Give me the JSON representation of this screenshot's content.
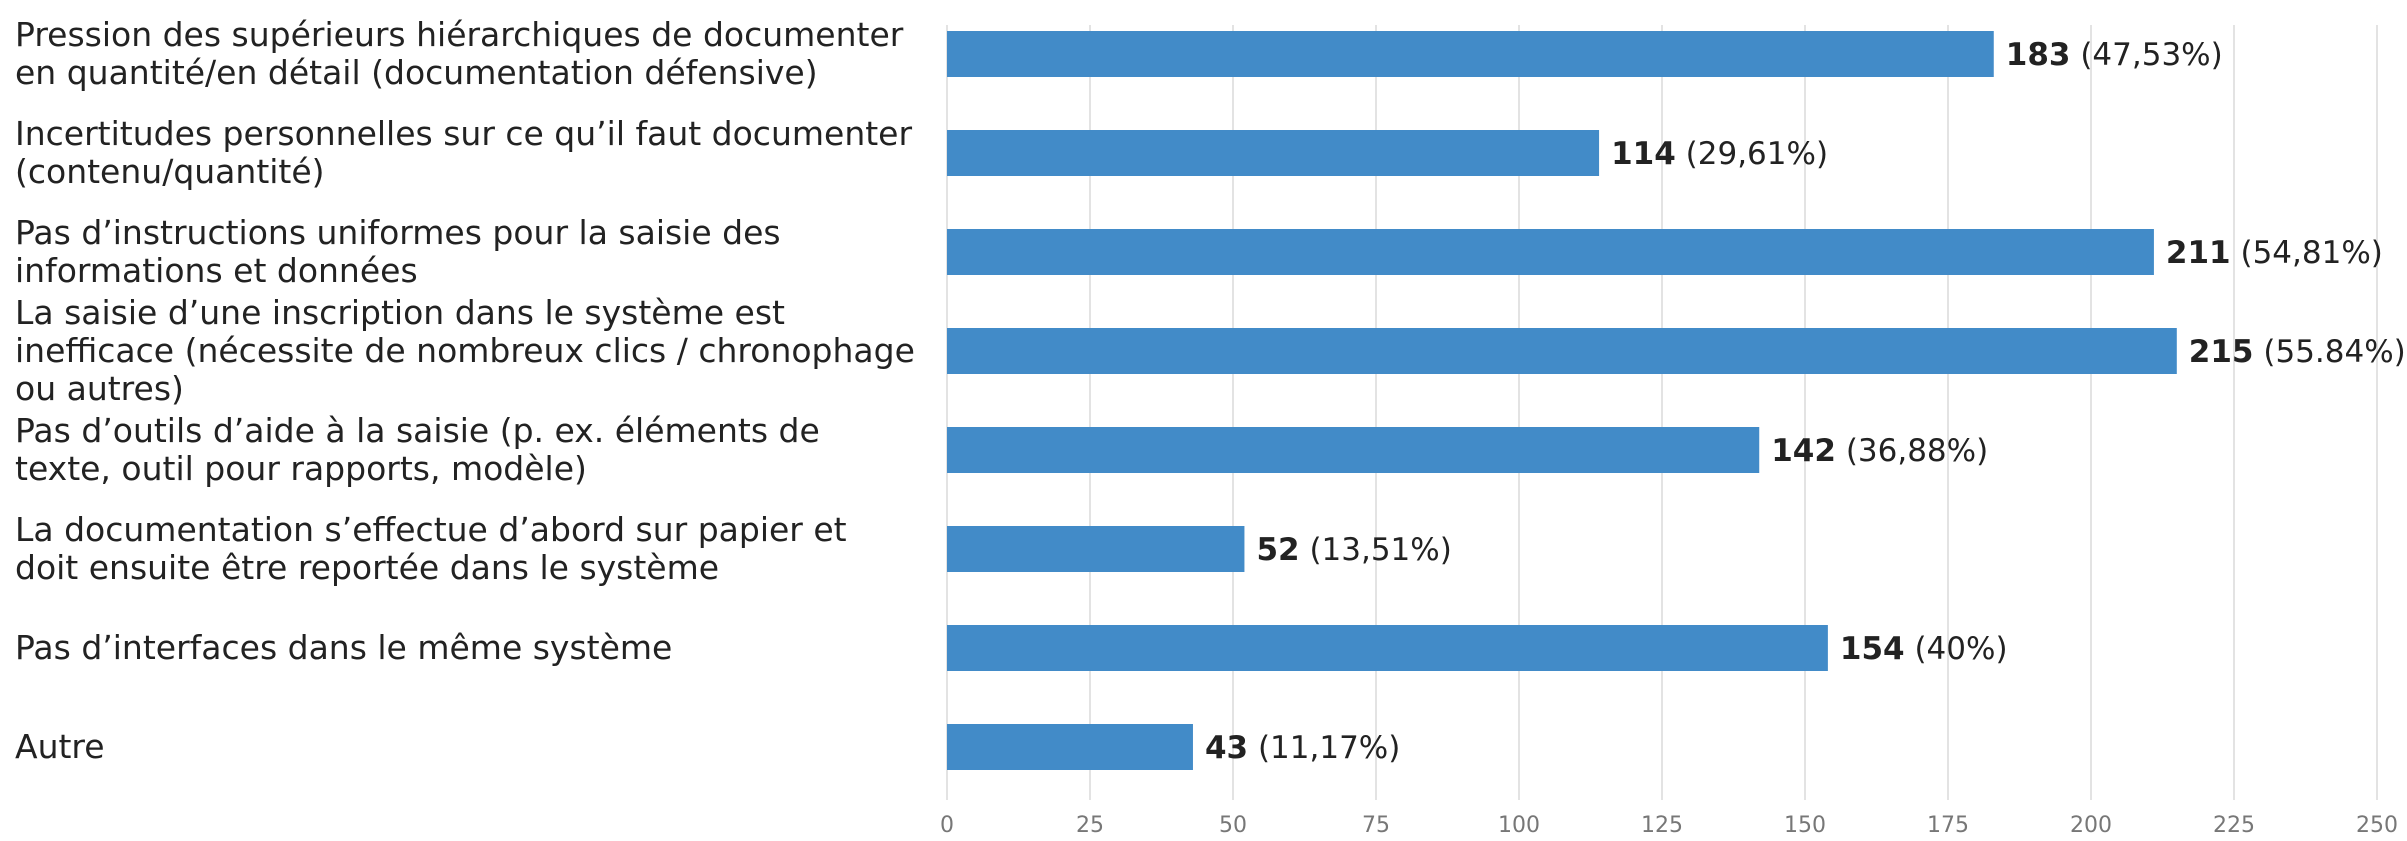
{
  "chart_data": {
    "type": "barh",
    "categories": [
      "Pression des supérieurs hiérarchiques de documenter en quantité/en détail (documentation défensive)",
      "Incertitudes personnelles sur ce qu’il faut documenter (contenu/quantité)",
      "Pas d’instructions uniformes pour la saisie des informations et données",
      "La saisie d’une inscription dans le système est inefficace (nécessite de nombreux clics / chronophage ou autres)",
      "Pas d’outils d’aide à la saisie (p. ex. éléments de texte, outil pour rapports, modèle)",
      "La documentation s’effectue d’abord sur papier et doit ensuite être reportée dans le système",
      "Pas d’interfaces dans le même système",
      "Autre"
    ],
    "values": [
      183,
      114,
      211,
      215,
      142,
      52,
      154,
      43
    ],
    "percentages": [
      47.53,
      29.61,
      54.81,
      55.84,
      36.88,
      13.51,
      40,
      11.17
    ],
    "percentage_labels": [
      "(47,53%)",
      "(29,61%)",
      "(54,81%)",
      "(55.84%)",
      "(36,88%)",
      "(13,51%)",
      "(40%)",
      "(11,17%)"
    ],
    "color": "#428bc8",
    "xlim": [
      0,
      250
    ],
    "xticks": [
      0,
      25,
      50,
      75,
      100,
      125,
      150,
      175,
      200,
      225,
      250
    ],
    "grid": true
  }
}
